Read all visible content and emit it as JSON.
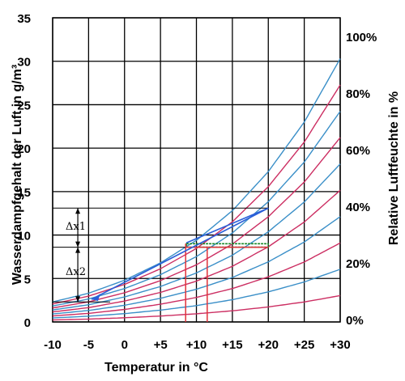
{
  "chart_data": {
    "type": "line",
    "title": "",
    "xlabel": "Temperatur in °C",
    "ylabel": "Wasserdampfgehalt der Luft in g/m³",
    "y2label": "Relative Luftfeuchte in %",
    "xlim": [
      -10,
      30
    ],
    "ylim": [
      0,
      35
    ],
    "grid": true,
    "x_ticks": [
      -10,
      -5,
      0,
      5,
      10,
      15,
      20,
      25,
      30
    ],
    "x_tick_labels": [
      "-10",
      "-5",
      "0",
      "+5",
      "+10",
      "+15",
      "+20",
      "+25",
      "+30"
    ],
    "y_ticks": [
      0,
      5,
      10,
      15,
      20,
      25,
      30,
      35
    ],
    "y_tick_labels": [
      "0",
      "5",
      "10",
      "15",
      "20",
      "25",
      "30",
      "35"
    ],
    "y2_tick_labels": [
      "100%",
      "80%",
      "60%",
      "40%",
      "20%",
      "0%"
    ],
    "series": [
      {
        "rh": 100,
        "color": "#3a8fc8"
      },
      {
        "rh": 90,
        "color": "#cc2e62"
      },
      {
        "rh": 80,
        "color": "#3a8fc8"
      },
      {
        "rh": 70,
        "color": "#cc2e62"
      },
      {
        "rh": 60,
        "color": "#3a8fc8"
      },
      {
        "rh": 50,
        "color": "#cc2e62"
      },
      {
        "rh": 40,
        "color": "#3a8fc8"
      },
      {
        "rh": 30,
        "color": "#cc2e62"
      },
      {
        "rh": 20,
        "color": "#3a8fc8"
      },
      {
        "rh": 10,
        "color": "#cc2e62"
      }
    ],
    "saturation_values": {
      "x": [
        -10,
        -5,
        0,
        5,
        10,
        15,
        20,
        25,
        30
      ],
      "y": [
        2.3,
        3.3,
        4.8,
        6.8,
        9.4,
        12.8,
        17.3,
        23.0,
        30.3
      ]
    },
    "annotations": {
      "delta_x1": "Δx1",
      "delta_x2": "Δx2",
      "delta_x1_range": [
        8.6,
        13.1
      ],
      "delta_x2_range": [
        2.3,
        8.6
      ]
    }
  }
}
